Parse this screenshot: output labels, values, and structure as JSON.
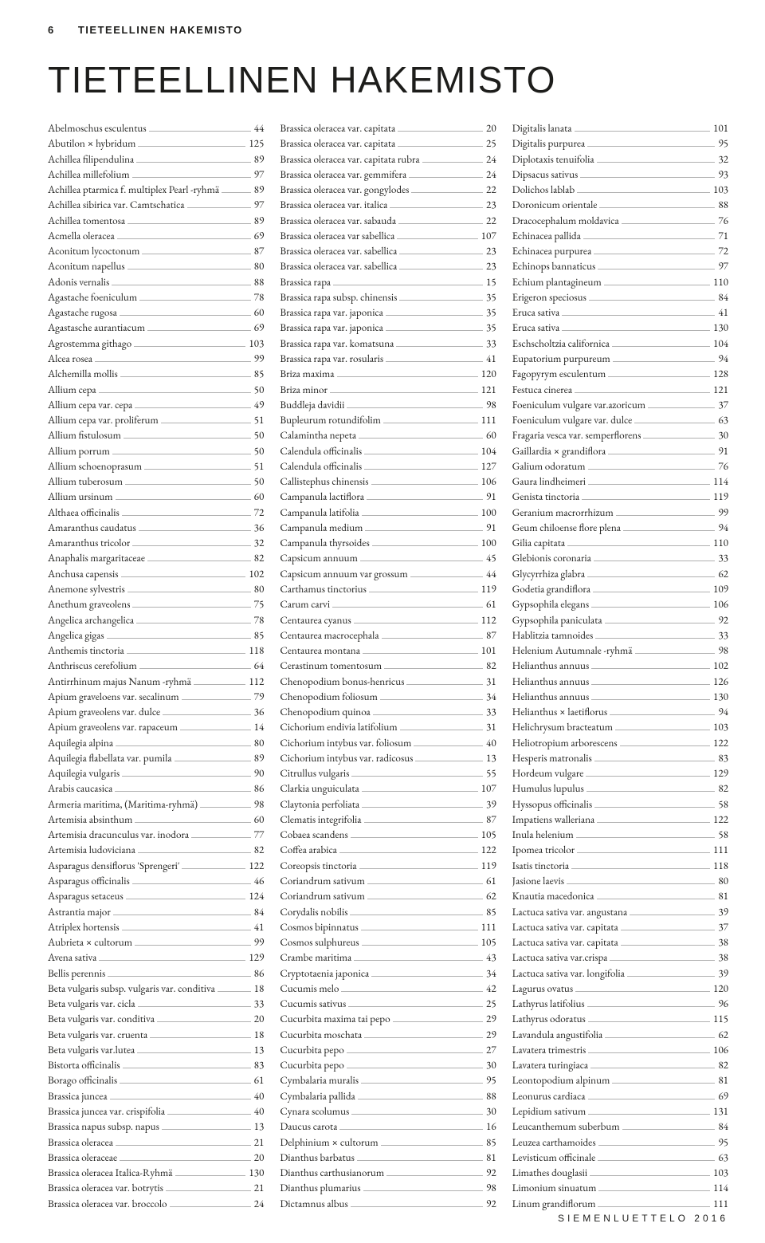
{
  "header": {
    "page_number": "6",
    "running_title": "TIETEELLINEN HAKEMISTO"
  },
  "title": "TIETEELLINEN HAKEMISTO",
  "footer": "SIEMENLUETTELO 2016",
  "columns": [
    [
      [
        "Abelmoschus esculentus",
        "44"
      ],
      [
        "Abutilon × hybridum",
        "125"
      ],
      [
        "Achillea filipendulina",
        "89"
      ],
      [
        "Achillea millefolium",
        "97"
      ],
      [
        "Achillea ptarmica f. multiplex Pearl -ryhmä",
        "89"
      ],
      [
        "Achillea sibirica var. Camtschatica",
        "97"
      ],
      [
        "Achillea tomentosa",
        "89"
      ],
      [
        "Acmella oleracea",
        "69"
      ],
      [
        "Aconitum lycoctonum",
        "87"
      ],
      [
        "Aconitum napellus",
        "80"
      ],
      [
        "Adonis vernalis",
        "88"
      ],
      [
        "Agastache foeniculum",
        "78"
      ],
      [
        "Agastache rugosa",
        "60"
      ],
      [
        "Agastasche aurantiacum",
        "69"
      ],
      [
        "Agrostemma githago",
        "103"
      ],
      [
        "Alcea rosea",
        "99"
      ],
      [
        "Alchemilla mollis",
        "85"
      ],
      [
        "Allium cepa",
        "50"
      ],
      [
        "Allium cepa var. cepa",
        "49"
      ],
      [
        "Allium cepa var. proliferum",
        "51"
      ],
      [
        "Allium fistulosum",
        "50"
      ],
      [
        "Allium porrum",
        "50"
      ],
      [
        "Allium schoenoprasum",
        "51"
      ],
      [
        "Allium tuberosum",
        "50"
      ],
      [
        "Allium ursinum",
        "60"
      ],
      [
        "Althaea officinalis",
        "72"
      ],
      [
        "Amaranthus caudatus",
        "36"
      ],
      [
        "Amaranthus tricolor",
        "32"
      ],
      [
        "Anaphalis margaritaceae",
        "82"
      ],
      [
        "Anchusa capensis",
        "102"
      ],
      [
        "Anemone sylvestris",
        "80"
      ],
      [
        "Anethum graveolens",
        "75"
      ],
      [
        "Angelica archangelica",
        "78"
      ],
      [
        "Angelica gigas",
        "85"
      ],
      [
        "Anthemis tinctoria",
        "118"
      ],
      [
        "Anthriscus cerefolium",
        "64"
      ],
      [
        "Antirrhinum majus Nanum -ryhmä",
        "112"
      ],
      [
        "Apium graveloens var. secalinum",
        "79"
      ],
      [
        "Apium graveolens var. dulce",
        "36"
      ],
      [
        "Apium graveolens var. rapaceum",
        "14"
      ],
      [
        "Aquilegia alpina",
        "80"
      ],
      [
        "Aquilegia flabellata var. pumila",
        "89"
      ],
      [
        "Aquilegia vulgaris",
        "90"
      ],
      [
        "Arabis caucasica",
        "86"
      ],
      [
        "Armeria maritima, (Maritima-ryhmä)",
        "98"
      ],
      [
        "Artemisia absinthum",
        "60"
      ],
      [
        "Artemisia dracunculus var. inodora",
        "77"
      ],
      [
        "Artemisia ludoviciana",
        "82"
      ],
      [
        "Asparagus densiflorus 'Sprengeri'",
        "122"
      ],
      [
        "Asparagus officinalis",
        "46"
      ],
      [
        "Asparagus setaceus",
        "124"
      ],
      [
        "Astrantia major",
        "84"
      ],
      [
        "Atriplex hortensis",
        "41"
      ],
      [
        "Aubrieta × cultorum",
        "99"
      ],
      [
        "Avena sativa",
        "129"
      ],
      [
        "Bellis perennis",
        "86"
      ],
      [
        "Beta vulgaris subsp. vulgaris var. conditiva",
        "18"
      ],
      [
        "Beta vulgaris var. cicla",
        "33"
      ],
      [
        "Beta vulgaris var. conditiva",
        "20"
      ],
      [
        "Beta vulgaris var. cruenta",
        "18"
      ],
      [
        "Beta vulgaris var.lutea",
        "13"
      ],
      [
        "Bistorta officinalis",
        "83"
      ],
      [
        "Borago officinalis",
        "61"
      ],
      [
        "Brassica juncea",
        "40"
      ],
      [
        "Brassica juncea var. crispifolia",
        "40"
      ],
      [
        "Brassica napus subsp. napus",
        "13"
      ],
      [
        "Brassica oleracea",
        "21"
      ],
      [
        "Brassica oleraceae",
        "20"
      ],
      [
        "Brassica oleracea Italica-Ryhmä",
        "130"
      ],
      [
        "Brassica oleracea var. botrytis",
        "21"
      ],
      [
        "Brassica oleracea var. broccolo",
        "24"
      ]
    ],
    [
      [
        "Brassica oleracea var. capitata",
        "20"
      ],
      [
        "Brassica oleracea var. capitata",
        "25"
      ],
      [
        "Brassica oleracea var. capitata rubra",
        "24"
      ],
      [
        "Brassica oleracea var. gemmifera",
        "24"
      ],
      [
        "Brassica oleracea var. gongylodes",
        "22"
      ],
      [
        "Brassica oleracea var. italica",
        "23"
      ],
      [
        "Brassica oleracea var. sabauda",
        "22"
      ],
      [
        "Brassica oleracea var sabellica",
        "107"
      ],
      [
        "Brassica oleracea var. sabellica",
        "23"
      ],
      [
        "Brassica oleracea var. sabellica",
        "23"
      ],
      [
        "Brassica rapa",
        "15"
      ],
      [
        "Brassica rapa subsp. chinensis",
        "35"
      ],
      [
        "Brassica rapa var. japonica",
        "35"
      ],
      [
        "Brassica rapa var. japonica",
        "35"
      ],
      [
        "Brassica rapa var. komatsuna",
        "33"
      ],
      [
        "Brassica rapa var. rosularis",
        "41"
      ],
      [
        "Briza maxima",
        "120"
      ],
      [
        "Briza minor",
        "121"
      ],
      [
        "Buddleja davidii",
        "98"
      ],
      [
        "Bupleurum rotundifolim",
        "111"
      ],
      [
        "Calamintha nepeta",
        "60"
      ],
      [
        "Calendula officinalis",
        "104"
      ],
      [
        "Calendula officinalis",
        "127"
      ],
      [
        "Callistephus chinensis",
        "106"
      ],
      [
        "Campanula lactiflora",
        "91"
      ],
      [
        "Campanula latifolia",
        "100"
      ],
      [
        "Campanula medium",
        "91"
      ],
      [
        "Campanula thyrsoides",
        "100"
      ],
      [
        "Capsicum annuum",
        "45"
      ],
      [
        "Capsicum annuum var grossum",
        "44"
      ],
      [
        "Carthamus tinctorius",
        "119"
      ],
      [
        "Carum carvi",
        "61"
      ],
      [
        "Centaurea cyanus",
        "112"
      ],
      [
        "Centaurea macrocephala",
        "87"
      ],
      [
        "Centaurea montana",
        "101"
      ],
      [
        "Cerastinum tomentosum",
        "82"
      ],
      [
        "Chenopodium bonus-henricus",
        "31"
      ],
      [
        "Chenopodium foliosum",
        "34"
      ],
      [
        "Chenopodium quinoa",
        "33"
      ],
      [
        "Cichorium endivia latifolium",
        "31"
      ],
      [
        "Cichorium intybus var. foliosum",
        "40"
      ],
      [
        "Cichorium intybus var. radicosus",
        "13"
      ],
      [
        "Citrullus vulgaris",
        "55"
      ],
      [
        "Clarkia unguiculata",
        "107"
      ],
      [
        "Claytonia perfoliata",
        "39"
      ],
      [
        "Clematis integrifolia",
        "87"
      ],
      [
        "Cobaea scandens",
        "105"
      ],
      [
        "Coffea arabica",
        "122"
      ],
      [
        "Coreopsis tinctoria",
        "119"
      ],
      [
        "Coriandrum sativum",
        "61"
      ],
      [
        "Coriandrum sativum",
        "62"
      ],
      [
        "Corydalis nobilis",
        "85"
      ],
      [
        "Cosmos bipinnatus",
        "111"
      ],
      [
        "Cosmos sulphureus",
        "105"
      ],
      [
        "Crambe maritima",
        "43"
      ],
      [
        "Cryptotaenia japonica",
        "34"
      ],
      [
        "Cucumis melo",
        "42"
      ],
      [
        "Cucumis sativus",
        "25"
      ],
      [
        "Cucurbita maxima tai pepo",
        "29"
      ],
      [
        "Cucurbita moschata",
        "29"
      ],
      [
        "Cucurbita pepo",
        "27"
      ],
      [
        "Cucurbita pepo",
        "30"
      ],
      [
        "Cymbalaria muralis",
        "95"
      ],
      [
        "Cymbalaria pallida",
        "88"
      ],
      [
        "Cynara scolumus",
        "30"
      ],
      [
        "Daucus carota",
        "16"
      ],
      [
        "Delphinium × cultorum",
        "85"
      ],
      [
        "Dianthus barbatus",
        "81"
      ],
      [
        "Dianthus carthusianorum",
        "92"
      ],
      [
        "Dianthus plumarius",
        "98"
      ],
      [
        "Dictamnus albus",
        "92"
      ]
    ],
    [
      [
        "Digitalis lanata",
        "101"
      ],
      [
        "Digitalis purpurea",
        "95"
      ],
      [
        "Diplotaxis tenuifolia",
        "32"
      ],
      [
        "Dipsacus sativus",
        "93"
      ],
      [
        "Dolichos lablab",
        "103"
      ],
      [
        "Doronicum orientale",
        "88"
      ],
      [
        "Dracocephalum moldavica",
        "76"
      ],
      [
        "Echinacea pallida",
        "71"
      ],
      [
        "Echinacea purpurea",
        "72"
      ],
      [
        "Echinops bannaticus",
        "97"
      ],
      [
        "Echium plantagineum",
        "110"
      ],
      [
        "Erigeron speciosus",
        "84"
      ],
      [
        "Eruca sativa",
        "41"
      ],
      [
        "Eruca sativa",
        "130"
      ],
      [
        "Eschscholtzia californica",
        "104"
      ],
      [
        "Eupatorium purpureum",
        "94"
      ],
      [
        "Fagopyrym esculentum",
        "128"
      ],
      [
        "Festuca cinerea",
        "121"
      ],
      [
        "Foeniculum vulgare var.azoricum",
        "37"
      ],
      [
        "Foeniculum vulgare var. dulce",
        "63"
      ],
      [
        "Fragaria vesca var. semperflorens",
        "30"
      ],
      [
        "Gaillardia × grandiflora",
        "91"
      ],
      [
        "Galium odoratum",
        "76"
      ],
      [
        "Gaura lindheimeri",
        "114"
      ],
      [
        "Genista tinctoria",
        "119"
      ],
      [
        "Geranium macrorrhizum",
        "99"
      ],
      [
        "Geum chiloense flore plena",
        "94"
      ],
      [
        "Gilia capitata",
        "110"
      ],
      [
        "Glebionis coronaria",
        "33"
      ],
      [
        "Glycyrrhiza glabra",
        "62"
      ],
      [
        "Godetia grandiflora",
        "109"
      ],
      [
        "Gypsophila elegans",
        "106"
      ],
      [
        "Gypsophila paniculata",
        "92"
      ],
      [
        "Hablitzia tamnoides",
        "33"
      ],
      [
        "Helenium Autumnale -ryhmä",
        "98"
      ],
      [
        "Helianthus annuus",
        "102"
      ],
      [
        "Helianthus annuus",
        "126"
      ],
      [
        "Helianthus annuus",
        "130"
      ],
      [
        "Helianthus × laetiflorus",
        "94"
      ],
      [
        "Helichrysum bracteatum",
        "103"
      ],
      [
        "Heliotropium arborescens",
        "122"
      ],
      [
        "Hesperis matronalis",
        "83"
      ],
      [
        "Hordeum vulgare",
        "129"
      ],
      [
        "Humulus lupulus",
        "82"
      ],
      [
        "Hyssopus officinalis",
        "58"
      ],
      [
        "Impatiens walleriana",
        "122"
      ],
      [
        "Inula helenium",
        "58"
      ],
      [
        "Ipomea tricolor",
        "111"
      ],
      [
        "Isatis tinctoria",
        "118"
      ],
      [
        "Jasione laevis",
        "80"
      ],
      [
        "Knautia macedonica",
        "81"
      ],
      [
        "Lactuca sativa var. angustana",
        "39"
      ],
      [
        "Lactuca sativa var. capitata",
        "37"
      ],
      [
        "Lactuca sativa var. capitata",
        "38"
      ],
      [
        "Lactuca sativa var.crispa",
        "38"
      ],
      [
        "Lactuca sativa var. longifolia",
        "39"
      ],
      [
        "Lagurus ovatus",
        "120"
      ],
      [
        "Lathyrus latifolius",
        "96"
      ],
      [
        "Lathyrus odoratus",
        "115"
      ],
      [
        "Lavandula angustifolia",
        "62"
      ],
      [
        "Lavatera trimestris",
        "106"
      ],
      [
        "Lavatera turingiaca",
        "82"
      ],
      [
        "Leontopodium alpinum",
        "81"
      ],
      [
        "Leonurus cardiaca",
        "69"
      ],
      [
        "Lepidium sativum",
        "131"
      ],
      [
        "Leucanthemum suberbum",
        "84"
      ],
      [
        "Leuzea carthamoides",
        "95"
      ],
      [
        "Levisticum officinale",
        "63"
      ],
      [
        "Limathes douglasii",
        "103"
      ],
      [
        "Limonium sinuatum",
        "114"
      ],
      [
        "Linum grandiflorum",
        "111"
      ]
    ]
  ]
}
